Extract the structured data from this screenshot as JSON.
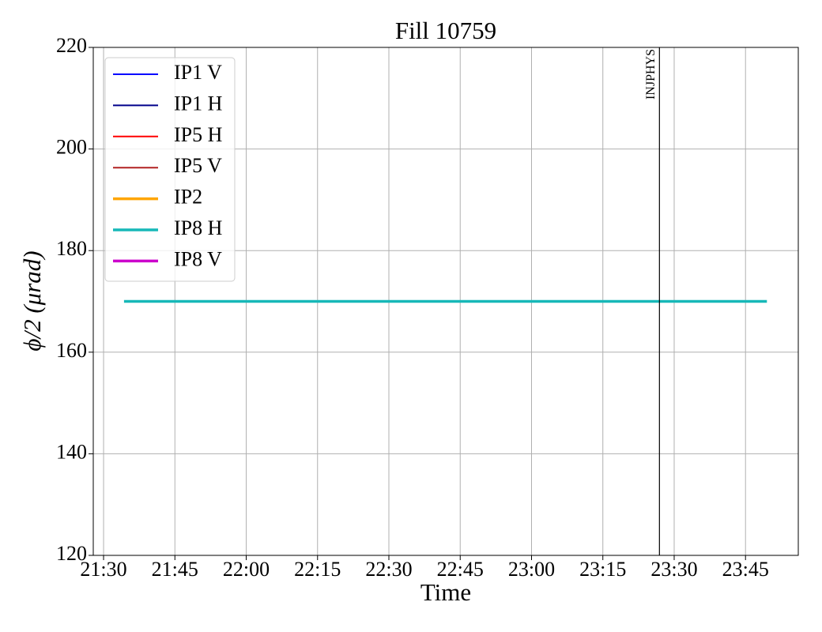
{
  "chart_data": {
    "type": "line",
    "title": "Fill 10759",
    "xlabel": "Time",
    "ylabel": "ϕ/2 (μrad)",
    "x": [
      "21:34:18",
      "23:49:30"
    ],
    "series": [
      {
        "name": "IP1 V",
        "color": "#0000ff",
        "linewidth": 2,
        "values": [
          null,
          null
        ]
      },
      {
        "name": "IP1 H",
        "color": "#00008b",
        "linewidth": 2,
        "values": [
          null,
          null
        ]
      },
      {
        "name": "IP5 H",
        "color": "#ff0000",
        "linewidth": 2,
        "values": [
          null,
          null
        ]
      },
      {
        "name": "IP5 V",
        "color": "#b22222",
        "linewidth": 2,
        "values": [
          null,
          null
        ]
      },
      {
        "name": "IP2",
        "color": "#ffa500",
        "linewidth": 3.5,
        "values": [
          null,
          null
        ]
      },
      {
        "name": "IP8 H",
        "color": "#17b8b8",
        "linewidth": 3.5,
        "values": [
          170,
          170
        ]
      },
      {
        "name": "IP8 V",
        "color": "#cc00cc",
        "linewidth": 3.5,
        "values": [
          null,
          null
        ]
      }
    ],
    "annotations": [
      {
        "x": "23:26:54",
        "label": "INJPHYS"
      }
    ],
    "xlim": [
      "21:27:50",
      "23:56:06"
    ],
    "xticks": [
      "21:30",
      "21:45",
      "22:00",
      "22:15",
      "22:30",
      "22:45",
      "23:00",
      "23:15",
      "23:30",
      "23:45"
    ],
    "ylim": [
      120,
      220
    ],
    "yticks": [
      120,
      140,
      160,
      180,
      200,
      220
    ],
    "grid": true,
    "legend": "upper left"
  }
}
